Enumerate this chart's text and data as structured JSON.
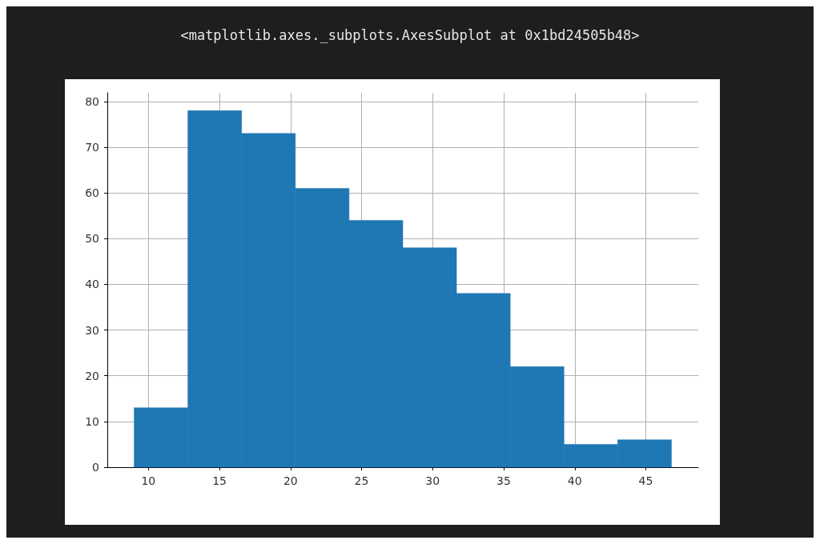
{
  "chart_data": {
    "type": "histogram",
    "title": "<matplotlib.axes._subplots.AxesSubplot at 0x1bd24505b48>",
    "bins": [
      9,
      12.78,
      16.56,
      20.34,
      24.12,
      27.9,
      31.68,
      35.46,
      39.24,
      43.02,
      46.8
    ],
    "values": [
      13,
      78,
      73,
      61,
      54,
      48,
      38,
      22,
      5,
      6
    ],
    "color": "#1f77b4",
    "xlim": [
      7.11,
      48.69
    ],
    "xticks": [
      10,
      15,
      20,
      25,
      30,
      35,
      40,
      45
    ],
    "ylim": [
      0,
      81.9
    ],
    "yticks": [
      0,
      10,
      20,
      30,
      40,
      50,
      60,
      70,
      80
    ],
    "grid": true
  }
}
